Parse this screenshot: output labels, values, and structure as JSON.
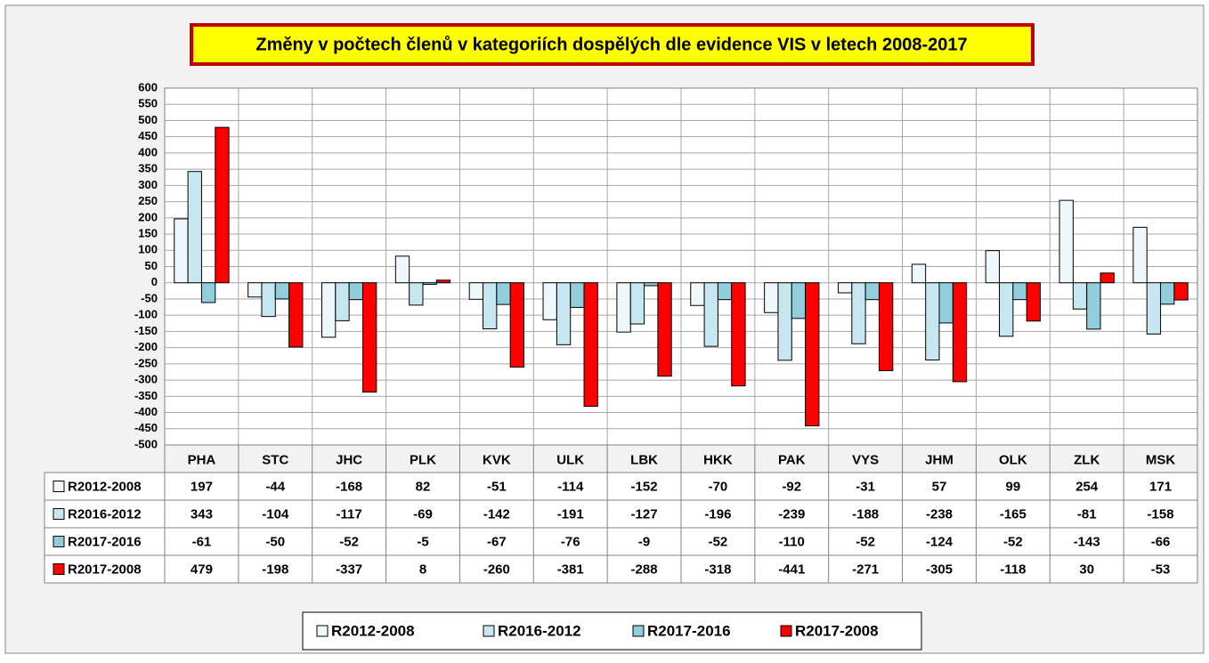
{
  "chart_data": {
    "type": "bar",
    "title": "Změny v počtech členů v kategoriích dospělých dle evidence VIS v letech 2008-2017",
    "categories": [
      "PHA",
      "STC",
      "JHC",
      "PLK",
      "KVK",
      "ULK",
      "LBK",
      "HKK",
      "PAK",
      "VYS",
      "JHM",
      "OLK",
      "ZLK",
      "MSK"
    ],
    "series": [
      {
        "name": "R2012-2008",
        "color": "#eef7fb",
        "values": [
          197,
          -44,
          -168,
          82,
          -51,
          -114,
          -152,
          -70,
          -92,
          -31,
          57,
          99,
          254,
          171
        ]
      },
      {
        "name": "R2016-2012",
        "color": "#c6e6f0",
        "values": [
          343,
          -104,
          -117,
          -69,
          -142,
          -191,
          -127,
          -196,
          -239,
          -188,
          -238,
          -165,
          -81,
          -158
        ]
      },
      {
        "name": "R2017-2016",
        "color": "#92cddc",
        "values": [
          -61,
          -50,
          -52,
          -5,
          -67,
          -76,
          -9,
          -52,
          -110,
          -52,
          -124,
          -52,
          -143,
          -66
        ]
      },
      {
        "name": "R2017-2008",
        "color": "#ff0000",
        "values": [
          479,
          -198,
          -337,
          8,
          -260,
          -381,
          -288,
          -318,
          -441,
          -271,
          -305,
          -118,
          30,
          -53
        ]
      }
    ],
    "ylim": [
      -500,
      600
    ],
    "yticks": [
      -500,
      -450,
      -400,
      -350,
      -300,
      -250,
      -200,
      -150,
      -100,
      -50,
      0,
      50,
      100,
      150,
      200,
      250,
      300,
      350,
      400,
      450,
      500,
      550,
      600
    ],
    "grid": true
  }
}
